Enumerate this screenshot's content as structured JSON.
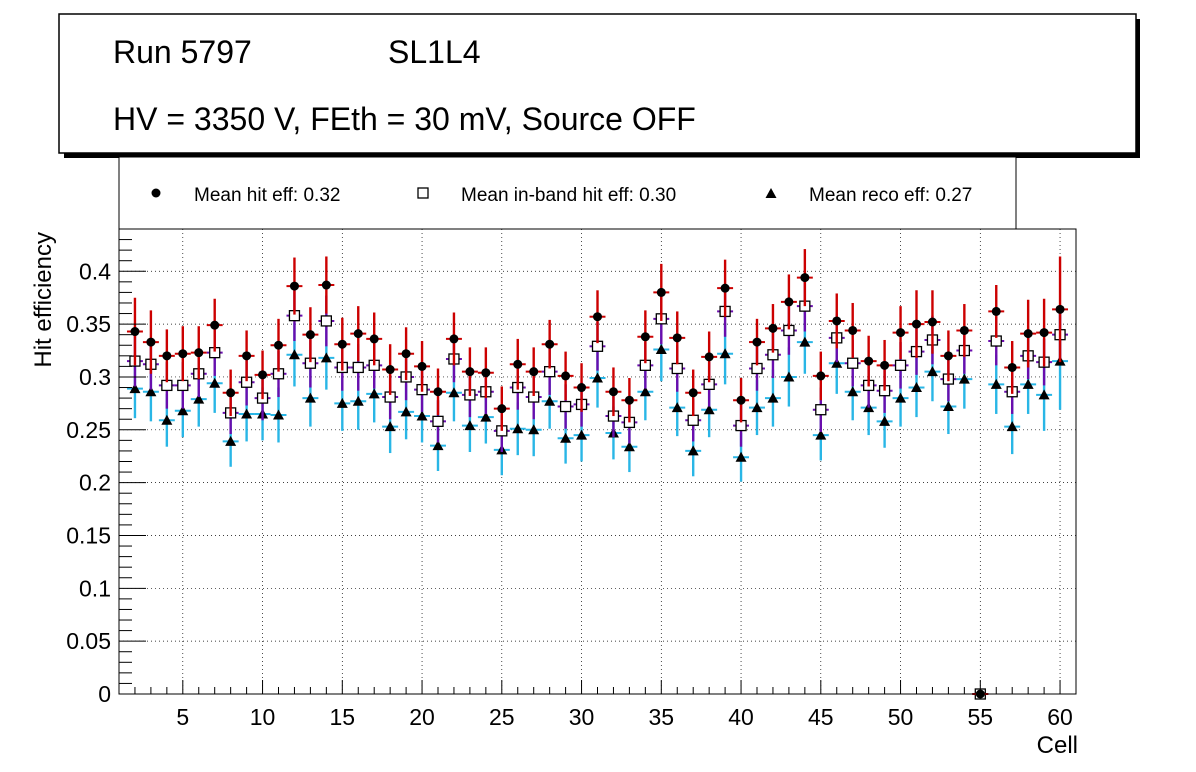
{
  "header": {
    "run": "Run 5797",
    "layer": "SL1L4",
    "conditions": "HV = 3350 V, FEth = 30 mV, Source OFF"
  },
  "legend": {
    "hit": "Mean hit  eff: 0.32",
    "inband": "Mean in-band hit eff: 0.30",
    "reco": "Mean reco eff: 0.27"
  },
  "colors": {
    "hit_error": "#cc0000",
    "inband_error": "#6a0dad",
    "reco_error": "#29b6e6",
    "marker": "#000000"
  },
  "chart_data": {
    "type": "scatter",
    "xlabel": "Cell",
    "ylabel": "Hit efficiency",
    "xlim": [
      1,
      61
    ],
    "ylim": [
      0,
      0.44
    ],
    "x_ticks": [
      5,
      10,
      15,
      20,
      25,
      30,
      35,
      40,
      45,
      50,
      55,
      60
    ],
    "y_ticks": [
      0,
      0.05,
      0.1,
      0.15,
      0.2,
      0.25,
      0.3,
      0.35,
      0.4
    ],
    "y_tick_labels": [
      "0",
      "0.05",
      "0.1",
      "0.15",
      "0.2",
      "0.25",
      "0.3",
      "0.35",
      "0.4"
    ],
    "grid": true,
    "x": [
      2,
      3,
      4,
      5,
      6,
      7,
      8,
      9,
      10,
      11,
      12,
      13,
      14,
      15,
      16,
      17,
      18,
      19,
      20,
      21,
      22,
      23,
      24,
      25,
      26,
      27,
      28,
      29,
      30,
      31,
      32,
      33,
      34,
      35,
      36,
      37,
      38,
      39,
      40,
      41,
      42,
      43,
      44,
      45,
      46,
      47,
      48,
      49,
      50,
      51,
      52,
      53,
      54,
      55,
      56,
      57,
      58,
      59,
      60
    ],
    "series": [
      {
        "name": "hit",
        "marker": "circle",
        "values": [
          0.343,
          0.333,
          0.32,
          0.322,
          0.323,
          0.349,
          0.285,
          0.32,
          0.302,
          0.33,
          0.386,
          0.34,
          0.387,
          0.331,
          0.341,
          0.336,
          0.307,
          0.322,
          0.31,
          0.286,
          0.336,
          0.305,
          0.304,
          0.27,
          0.312,
          0.305,
          0.331,
          0.301,
          0.29,
          0.357,
          0.286,
          0.278,
          0.338,
          0.38,
          0.337,
          0.285,
          0.319,
          0.384,
          0.278,
          0.333,
          0.346,
          0.371,
          0.394,
          0.301,
          0.353,
          0.344,
          0.315,
          0.311,
          0.342,
          0.35,
          0.352,
          0.32,
          0.344,
          0.0,
          0.362,
          0.309,
          0.341,
          0.342,
          0.364
        ],
        "err": [
          0.032,
          0.03,
          0.025,
          0.026,
          0.025,
          0.025,
          0.022,
          0.024,
          0.023,
          0.025,
          0.027,
          0.026,
          0.027,
          0.025,
          0.026,
          0.025,
          0.024,
          0.025,
          0.024,
          0.022,
          0.025,
          0.023,
          0.024,
          0.021,
          0.024,
          0.023,
          0.023,
          0.023,
          0.023,
          0.025,
          0.023,
          0.021,
          0.025,
          0.027,
          0.025,
          0.022,
          0.024,
          0.027,
          0.021,
          0.022,
          0.023,
          0.026,
          0.027,
          0.023,
          0.026,
          0.026,
          0.024,
          0.024,
          0.025,
          0.032,
          0.03,
          0.024,
          0.025,
          0.0,
          0.025,
          0.025,
          0.032,
          0.032,
          0.05
        ]
      },
      {
        "name": "inband",
        "marker": "open-square",
        "values": [
          0.315,
          0.312,
          0.292,
          0.292,
          0.303,
          0.323,
          0.266,
          0.295,
          0.28,
          0.303,
          0.358,
          0.313,
          0.353,
          0.309,
          0.309,
          0.311,
          0.281,
          0.3,
          0.288,
          0.258,
          0.317,
          0.283,
          0.286,
          0.249,
          0.29,
          0.281,
          0.305,
          0.272,
          0.274,
          0.329,
          0.263,
          0.257,
          0.311,
          0.355,
          0.308,
          0.259,
          0.293,
          0.362,
          0.254,
          0.308,
          0.321,
          0.344,
          0.367,
          0.269,
          0.337,
          0.313,
          0.292,
          0.287,
          0.311,
          0.324,
          0.335,
          0.298,
          0.325,
          0.0,
          0.334,
          0.286,
          0.32,
          0.314,
          0.34
        ],
        "err": [
          0.024,
          0.024,
          0.022,
          0.022,
          0.022,
          0.022,
          0.02,
          0.022,
          0.021,
          0.022,
          0.024,
          0.023,
          0.024,
          0.022,
          0.022,
          0.022,
          0.021,
          0.022,
          0.021,
          0.02,
          0.022,
          0.021,
          0.021,
          0.02,
          0.021,
          0.021,
          0.022,
          0.021,
          0.021,
          0.023,
          0.02,
          0.02,
          0.022,
          0.024,
          0.022,
          0.02,
          0.021,
          0.024,
          0.02,
          0.021,
          0.022,
          0.023,
          0.024,
          0.021,
          0.023,
          0.022,
          0.021,
          0.021,
          0.022,
          0.022,
          0.023,
          0.021,
          0.022,
          0.0,
          0.023,
          0.021,
          0.022,
          0.022,
          0.023
        ]
      },
      {
        "name": "reco",
        "marker": "triangle",
        "values": [
          0.289,
          0.286,
          0.259,
          0.268,
          0.279,
          0.294,
          0.239,
          0.265,
          0.265,
          0.264,
          0.321,
          0.28,
          0.318,
          0.275,
          0.277,
          0.284,
          0.253,
          0.267,
          0.263,
          0.235,
          0.285,
          0.254,
          0.262,
          0.231,
          0.251,
          0.25,
          0.277,
          0.242,
          0.245,
          0.299,
          0.247,
          0.234,
          0.286,
          0.326,
          0.271,
          0.23,
          0.269,
          0.322,
          0.224,
          0.271,
          0.28,
          0.3,
          0.333,
          0.245,
          0.313,
          0.286,
          0.271,
          0.258,
          0.28,
          0.29,
          0.305,
          0.272,
          0.298,
          0.0,
          0.293,
          0.253,
          0.293,
          0.283,
          0.315
        ],
        "err": [
          0.028,
          0.028,
          0.025,
          0.025,
          0.026,
          0.028,
          0.024,
          0.026,
          0.025,
          0.026,
          0.03,
          0.027,
          0.03,
          0.026,
          0.027,
          0.027,
          0.025,
          0.026,
          0.025,
          0.024,
          0.027,
          0.025,
          0.025,
          0.024,
          0.025,
          0.025,
          0.026,
          0.024,
          0.025,
          0.028,
          0.025,
          0.024,
          0.027,
          0.03,
          0.027,
          0.024,
          0.026,
          0.029,
          0.023,
          0.026,
          0.027,
          0.028,
          0.03,
          0.024,
          0.029,
          0.027,
          0.026,
          0.025,
          0.027,
          0.028,
          0.028,
          0.026,
          0.028,
          0.0,
          0.028,
          0.026,
          0.028,
          0.034,
          0.046
        ]
      }
    ]
  }
}
